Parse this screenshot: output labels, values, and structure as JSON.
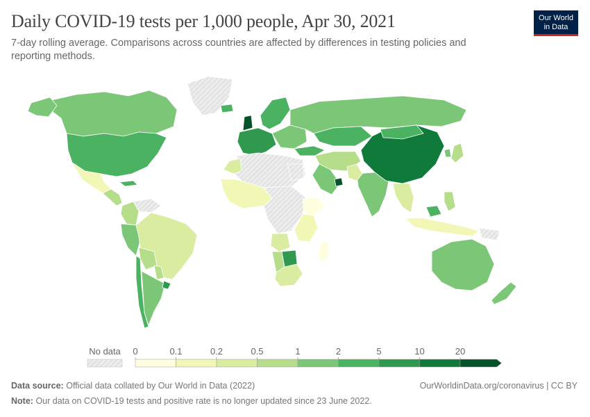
{
  "header": {
    "title": "Daily COVID-19 tests per 1,000 people, Apr 30, 2021",
    "subtitle": "7-day rolling average. Comparisons across countries are affected by differences in testing policies and reporting methods."
  },
  "logo": {
    "line1": "Our World",
    "line2": "in Data",
    "bg": "#002147",
    "accent": "#ce261e"
  },
  "legend": {
    "no_data_label": "No data",
    "ticks": [
      "0",
      "0.1",
      "0.2",
      "0.5",
      "1",
      "2",
      "5",
      "10",
      "20"
    ],
    "colors": [
      "#ffffe0",
      "#f2f7b6",
      "#d9ec9f",
      "#b5dd8a",
      "#7cc777",
      "#4bb261",
      "#2f9a4f",
      "#0f7a3a",
      "#06532a"
    ]
  },
  "map_data": {
    "no_data_color": "#e8e8e8",
    "regions": [
      {
        "name": "Canada",
        "bin": 4
      },
      {
        "name": "Alaska",
        "bin": 4
      },
      {
        "name": "Greenland",
        "bin": -1
      },
      {
        "name": "United States",
        "bin": 5
      },
      {
        "name": "Mexico",
        "bin": 1
      },
      {
        "name": "Central America",
        "bin": 3
      },
      {
        "name": "Cuba",
        "bin": 5
      },
      {
        "name": "Venezuela",
        "bin": -1
      },
      {
        "name": "Colombia",
        "bin": 3
      },
      {
        "name": "Peru",
        "bin": 4
      },
      {
        "name": "Brazil",
        "bin": 2
      },
      {
        "name": "Bolivia",
        "bin": 3
      },
      {
        "name": "Paraguay",
        "bin": 3
      },
      {
        "name": "Argentina",
        "bin": 4
      },
      {
        "name": "Chile",
        "bin": 5
      },
      {
        "name": "Uruguay",
        "bin": 6
      },
      {
        "name": "Western Europe",
        "bin": 6
      },
      {
        "name": "United Kingdom",
        "bin": 8
      },
      {
        "name": "Iceland",
        "bin": 5
      },
      {
        "name": "Scandinavia",
        "bin": 5
      },
      {
        "name": "Eastern Europe",
        "bin": 4
      },
      {
        "name": "Turkey",
        "bin": 5
      },
      {
        "name": "Russia",
        "bin": 4
      },
      {
        "name": "Kazakhstan",
        "bin": 5
      },
      {
        "name": "Middle East",
        "bin": 3
      },
      {
        "name": "Saudi Arabia",
        "bin": 4
      },
      {
        "name": "UAE",
        "bin": 8
      },
      {
        "name": "North Africa",
        "bin": -1
      },
      {
        "name": "Morocco",
        "bin": 2
      },
      {
        "name": "Egypt",
        "bin": -1
      },
      {
        "name": "West Africa",
        "bin": 1
      },
      {
        "name": "Central Africa",
        "bin": -1
      },
      {
        "name": "Ethiopia",
        "bin": 0
      },
      {
        "name": "East Africa",
        "bin": 1
      },
      {
        "name": "Angola",
        "bin": 2
      },
      {
        "name": "Namibia",
        "bin": 3
      },
      {
        "name": "Botswana",
        "bin": 6
      },
      {
        "name": "South Africa",
        "bin": 2
      },
      {
        "name": "Madagascar",
        "bin": 0
      },
      {
        "name": "India",
        "bin": 4
      },
      {
        "name": "Pakistan",
        "bin": 2
      },
      {
        "name": "China",
        "bin": 7
      },
      {
        "name": "Mongolia",
        "bin": 5
      },
      {
        "name": "Japan",
        "bin": 3
      },
      {
        "name": "South Korea",
        "bin": 4
      },
      {
        "name": "Southeast Asia",
        "bin": 2
      },
      {
        "name": "Indonesia",
        "bin": 1
      },
      {
        "name": "Philippines",
        "bin": 3
      },
      {
        "name": "Malaysia",
        "bin": 5
      },
      {
        "name": "Papua New Guinea",
        "bin": -1
      },
      {
        "name": "Australia",
        "bin": 4
      },
      {
        "name": "New Zealand",
        "bin": 4
      }
    ]
  },
  "footer": {
    "source_label": "Data source:",
    "source_text": "Official data collated by Our World in Data (2022)",
    "note_label": "Note:",
    "note_text": "Our data on COVID-19 tests and positive rate is no longer updated since 23 June 2022.",
    "url": "OurWorldinData.org/coronavirus | CC BY"
  }
}
